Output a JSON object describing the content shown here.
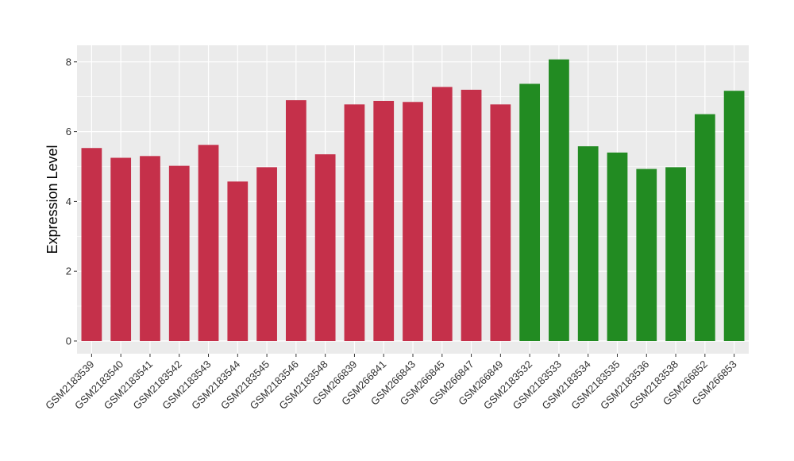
{
  "chart_data": {
    "type": "bar",
    "ylabel": "Expression Level",
    "xlabel": "",
    "title": "",
    "ylim": [
      0,
      8.4
    ],
    "yticks": [
      0,
      2,
      4,
      6,
      8
    ],
    "grid": true,
    "legend": "none",
    "colors": {
      "group1": "#C5304A",
      "group2": "#228B22",
      "panel_bg": "#EBEBEB",
      "grid": "#FFFFFF"
    },
    "categories": [
      "GSM2183539",
      "GSM2183540",
      "GSM2183541",
      "GSM2183542",
      "GSM2183543",
      "GSM2183544",
      "GSM2183545",
      "GSM2183546",
      "GSM2183548",
      "GSM266839",
      "GSM266841",
      "GSM266843",
      "GSM266845",
      "GSM266847",
      "GSM266849",
      "GSM2183532",
      "GSM2183533",
      "GSM2183534",
      "GSM2183535",
      "GSM2183536",
      "GSM2183538",
      "GSM266852",
      "GSM266853"
    ],
    "values": [
      5.53,
      5.25,
      5.3,
      5.02,
      5.62,
      4.57,
      4.98,
      6.9,
      5.35,
      6.78,
      6.88,
      6.85,
      7.28,
      7.2,
      6.78,
      7.37,
      8.07,
      5.58,
      5.4,
      4.93,
      4.98,
      6.5,
      7.17
    ],
    "groups": [
      1,
      1,
      1,
      1,
      1,
      1,
      1,
      1,
      1,
      1,
      1,
      1,
      1,
      1,
      1,
      2,
      2,
      2,
      2,
      2,
      2,
      2,
      2
    ]
  }
}
